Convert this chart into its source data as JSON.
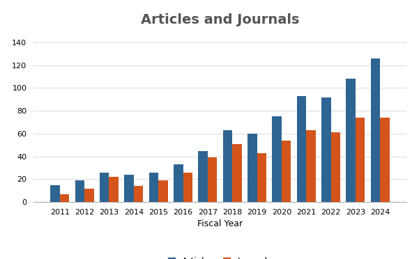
{
  "title": "Articles and Journals",
  "xlabel": "Fiscal Year",
  "years": [
    2011,
    2012,
    2013,
    2014,
    2015,
    2016,
    2017,
    2018,
    2019,
    2020,
    2021,
    2022,
    2023,
    2024
  ],
  "articles": [
    15,
    19,
    26,
    24,
    26,
    33,
    45,
    63,
    60,
    75,
    93,
    92,
    108,
    126
  ],
  "journals": [
    7,
    12,
    22,
    14,
    19,
    26,
    39,
    51,
    43,
    54,
    63,
    61,
    74,
    74
  ],
  "articles_color": "#2E6492",
  "journals_color": "#D4541B",
  "ylim": [
    0,
    150
  ],
  "yticks": [
    0,
    20,
    40,
    60,
    80,
    100,
    120,
    140
  ],
  "background_color": "#ffffff",
  "plot_bg_color": "#ffffff",
  "title_fontsize": 14,
  "title_color": "#555555",
  "legend_labels": [
    "Articles",
    "Journals"
  ],
  "bar_width": 0.38,
  "grid_color": "#dddddd",
  "tick_fontsize": 8,
  "xlabel_fontsize": 9
}
